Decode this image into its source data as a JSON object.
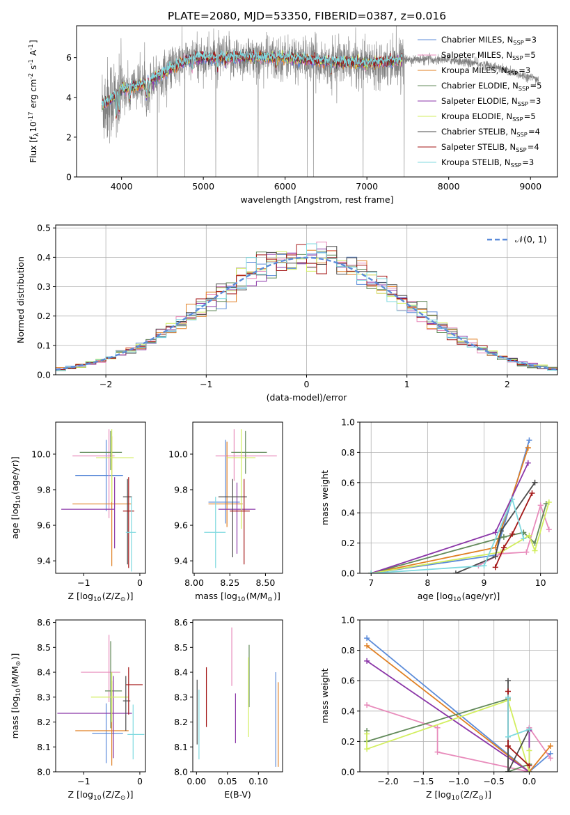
{
  "figure_title": "PLATE=2080, MJD=53350, FIBERID=0387, z=0.016",
  "series_names": [
    "Chabrier MILES, N$_{SSP}$=3",
    "Salpeter MILES, N$_{SSP}$=5",
    "Kroupa MILES, N$_{SSP}$=3",
    "Chabrier ELODIE, N$_{SSP}$=5",
    "Salpeter ELODIE, N$_{SSP}$=3",
    "Kroupa ELODIE, N$_{SSP}$=5",
    "Chabrier STELIB, N$_{SSP}$=4",
    "Salpeter STELIB, N$_{SSP}$=4",
    "Kroupa STELIB, N$_{SSP}$=3"
  ],
  "colors": {
    "series": [
      "#5b8bd9",
      "#e88bbb",
      "#e07f22",
      "#628a5a",
      "#8b36a8",
      "#d2ee5e",
      "#4a4a4a",
      "#a31616",
      "#7fd9df"
    ],
    "data": "#808080",
    "gaussian": "#5b8bd9",
    "grid": "#b0b0b0"
  },
  "chart_data": [
    {
      "id": "spectrum",
      "type": "line",
      "xlabel": "wavelength [Angstrom, rest frame]",
      "ylabel": "Flux [f$_\\lambda$10$^{-17}$ erg cm$^{-2}$ s$^{-1}$ A$^{-1}$]",
      "xlim": [
        3450,
        9330
      ],
      "ylim": [
        0,
        7.6
      ],
      "xticks": [
        4000,
        5000,
        6000,
        7000,
        8000,
        9000
      ],
      "yticks": [
        0,
        2,
        4,
        6
      ],
      "grid": false,
      "legend_position": "top-right",
      "data_range": [
        3760,
        9100
      ],
      "model_range": [
        3760,
        7430
      ],
      "continuum": [
        [
          3760,
          3.6
        ],
        [
          3900,
          4.0
        ],
        [
          4000,
          4.4
        ],
        [
          4300,
          4.7
        ],
        [
          4500,
          5.2
        ],
        [
          4800,
          5.9
        ],
        [
          5000,
          6.0
        ],
        [
          5500,
          6.0
        ],
        [
          6000,
          6.0
        ],
        [
          6500,
          5.8
        ],
        [
          7000,
          5.7
        ],
        [
          7500,
          5.9
        ],
        [
          8000,
          5.9
        ],
        [
          8500,
          5.6
        ],
        [
          9000,
          5.0
        ],
        [
          9100,
          4.9
        ]
      ]
    },
    {
      "id": "residuals",
      "type": "line",
      "xlabel": "(data-model)/error",
      "ylabel": "Normed distribution",
      "xlim": [
        -2.5,
        2.5
      ],
      "ylim": [
        0,
        0.51
      ],
      "xticks": [
        -2,
        -1,
        0,
        1,
        2
      ],
      "yticks": [
        0,
        0.1,
        0.2,
        0.3,
        0.4,
        0.5
      ],
      "grid": true,
      "legend_position": "top-right",
      "legend": "$\\mathcal{N}(0, 1)$",
      "bin_width": 0.1
    },
    {
      "id": "age_vs_Z",
      "type": "scatter",
      "xlabel": "Z [log$_{10}$(Z/Z$_\\odot$)]",
      "ylabel": "age  [log$_{10}$(age/yr)]",
      "xlim": [
        -1.5,
        0.1
      ],
      "ylim": [
        9.33,
        10.18
      ],
      "xticks": [
        -1,
        0
      ],
      "yticks": [
        9.4,
        9.6,
        9.8,
        10.0
      ],
      "grid": false,
      "points": [
        {
          "x": -0.6,
          "xerr": [
            0.55,
            0.3
          ],
          "y": 9.88,
          "yerr": [
            0.2,
            0.2
          ]
        },
        {
          "x": -0.55,
          "xerr": [
            0.65,
            0.1
          ],
          "y": 9.99,
          "yerr": [
            0.35,
            0.15
          ]
        },
        {
          "x": -0.5,
          "xerr": [
            0.7,
            0.35
          ],
          "y": 9.72,
          "yerr": [
            0.35,
            0.38
          ]
        },
        {
          "x": -0.52,
          "xerr": [
            0.55,
            0.2
          ],
          "y": 10.01,
          "yerr": [
            0.1,
            0.12
          ]
        },
        {
          "x": -0.45,
          "xerr": [
            0.95,
            0.0
          ],
          "y": 9.69,
          "yerr": [
            0.22,
            0.18
          ]
        },
        {
          "x": -0.5,
          "xerr": [
            0.28,
            0.39
          ],
          "y": 9.98,
          "yerr": [
            0.25,
            0.16
          ]
        },
        {
          "x": -0.22,
          "xerr": [
            0.08,
            0.08
          ],
          "y": 9.76,
          "yerr": [
            0.38,
            0.1
          ]
        },
        {
          "x": -0.2,
          "xerr": [
            0.1,
            0.1
          ],
          "y": 9.68,
          "yerr": [
            0.32,
            0.19
          ]
        },
        {
          "x": -0.15,
          "xerr": [
            0.1,
            0.08
          ],
          "y": 9.56,
          "yerr": [
            0.22,
            0.2
          ]
        }
      ]
    },
    {
      "id": "age_vs_mass",
      "type": "scatter",
      "xlabel": "mass [log$_{10}$(M/M$_\\odot$)]",
      "ylabel": "",
      "xlim": [
        7.99,
        8.62
      ],
      "ylim": [
        9.33,
        10.18
      ],
      "xticks": [
        8.0,
        8.25,
        8.5
      ],
      "yticks": [
        9.4,
        9.6,
        9.8,
        10.0
      ],
      "grid": false,
      "points": [
        {
          "x": 8.22,
          "xerr": [
            0.12,
            0.1
          ],
          "y": 9.73,
          "yerr": [
            0.12,
            0.35
          ]
        },
        {
          "x": 8.28,
          "xerr": [
            0.13,
            0.3
          ],
          "y": 9.99,
          "yerr": [
            0.14,
            0.15
          ]
        },
        {
          "x": 8.23,
          "xerr": [
            0.13,
            0.11
          ],
          "y": 9.72,
          "yerr": [
            0.13,
            0.35
          ]
        },
        {
          "x": 8.36,
          "xerr": [
            0.1,
            0.15
          ],
          "y": 10.01,
          "yerr": [
            0.12,
            0.12
          ]
        },
        {
          "x": 8.3,
          "xerr": [
            0.13,
            0.13
          ],
          "y": 9.69,
          "yerr": [
            0.25,
            0.15
          ]
        },
        {
          "x": 8.33,
          "xerr": [
            0.1,
            0.1
          ],
          "y": 9.98,
          "yerr": [
            0.4,
            0.16
          ]
        },
        {
          "x": 8.27,
          "xerr": [
            0.1,
            0.1
          ],
          "y": 9.76,
          "yerr": [
            0.34,
            0.1
          ]
        },
        {
          "x": 8.35,
          "xerr": [
            0.1,
            0.04
          ],
          "y": 9.68,
          "yerr": [
            0.3,
            0.18
          ]
        },
        {
          "x": 8.15,
          "xerr": [
            0.08,
            0.07
          ],
          "y": 9.56,
          "yerr": [
            0.2,
            0.2
          ]
        }
      ]
    },
    {
      "id": "weight_vs_age",
      "type": "line",
      "xlabel": "age  [log$_{10}$(age/yr)]",
      "ylabel": "mass weight",
      "xlim": [
        6.8,
        10.3
      ],
      "ylim": [
        0,
        1.0
      ],
      "xticks": [
        7,
        8,
        9,
        10
      ],
      "yticks": [
        0.0,
        0.2,
        0.4,
        0.6,
        0.8,
        1.0
      ],
      "grid": true,
      "series": [
        {
          "points": [
            [
              7.0,
              0.0
            ],
            [
              9.2,
              0.12
            ],
            [
              9.8,
              0.88
            ]
          ]
        },
        {
          "points": [
            [
              8.9,
              0.05
            ],
            [
              9.3,
              0.13
            ],
            [
              9.75,
              0.14
            ],
            [
              10.0,
              0.45
            ],
            [
              10.15,
              0.29
            ]
          ]
        },
        {
          "points": [
            [
              7.0,
              0.0
            ],
            [
              9.2,
              0.17
            ],
            [
              9.78,
              0.83
            ]
          ]
        },
        {
          "points": [
            [
              7.0,
              0.0
            ],
            [
              9.35,
              0.24
            ],
            [
              9.7,
              0.27
            ],
            [
              9.9,
              0.2
            ],
            [
              10.1,
              0.46
            ]
          ]
        },
        {
          "points": [
            [
              7.0,
              0.0
            ],
            [
              9.2,
              0.27
            ],
            [
              9.78,
              0.73
            ]
          ]
        },
        {
          "points": [
            [
              7.0,
              0.0
            ],
            [
              9.3,
              0.14
            ],
            [
              9.8,
              0.25
            ],
            [
              9.9,
              0.15
            ],
            [
              10.15,
              0.47
            ]
          ]
        },
        {
          "points": [
            [
              8.5,
              0.0
            ],
            [
              9.2,
              0.11
            ],
            [
              9.3,
              0.28
            ],
            [
              9.9,
              0.6
            ]
          ]
        },
        {
          "points": [
            [
              9.2,
              0.04
            ],
            [
              9.35,
              0.17
            ],
            [
              9.5,
              0.26
            ],
            [
              9.85,
              0.53
            ]
          ]
        },
        {
          "points": [
            [
              7.0,
              0.0
            ],
            [
              9.0,
              0.05
            ],
            [
              9.5,
              0.49
            ],
            [
              9.7,
              0.23
            ]
          ]
        }
      ]
    },
    {
      "id": "mass_vs_Z",
      "type": "scatter",
      "xlabel": "Z [log$_{10}$(Z/Z$_\\odot$)]",
      "ylabel": "mass [log$_{10}$(M/M$_\\odot$)]",
      "xlim": [
        -1.5,
        0.1
      ],
      "ylim": [
        8.0,
        8.61
      ],
      "xticks": [
        -1,
        0
      ],
      "yticks": [
        8.0,
        8.1,
        8.2,
        8.3,
        8.4,
        8.5,
        8.6
      ],
      "grid": false,
      "points": [
        {
          "x": -0.6,
          "xerr": [
            0.25,
            0.3
          ],
          "y": 8.155,
          "yerr": [
            0.12,
            0.12
          ]
        },
        {
          "x": -0.55,
          "xerr": [
            0.5,
            0.2
          ],
          "y": 8.4,
          "yerr": [
            0.12,
            0.15
          ]
        },
        {
          "x": -0.5,
          "xerr": [
            0.65,
            0.3
          ],
          "y": 8.165,
          "yerr": [
            0.14,
            0.2
          ]
        },
        {
          "x": -0.52,
          "xerr": [
            0.1,
            0.2
          ],
          "y": 8.325,
          "yerr": [
            0.15,
            0.2
          ]
        },
        {
          "x": -0.47,
          "xerr": [
            1.0,
            0.33
          ],
          "y": 8.235,
          "yerr": [
            0.18,
            0.15
          ]
        },
        {
          "x": -0.5,
          "xerr": [
            0.37,
            0.3
          ],
          "y": 8.3,
          "yerr": [
            0.1,
            0.1
          ]
        },
        {
          "x": -0.25,
          "xerr": [
            0.05,
            0.08
          ],
          "y": 8.285,
          "yerr": [
            0.12,
            0.1
          ]
        },
        {
          "x": -0.2,
          "xerr": [
            0.05,
            0.25
          ],
          "y": 8.35,
          "yerr": [
            0.12,
            0.07
          ]
        },
        {
          "x": -0.12,
          "xerr": [
            0.1,
            0.2
          ],
          "y": 8.15,
          "yerr": [
            0.1,
            0.12
          ]
        }
      ]
    },
    {
      "id": "mass_vs_EBV",
      "type": "scatter",
      "xlabel": "E(B-V)",
      "ylabel": "",
      "xlim": [
        -0.006,
        0.139
      ],
      "ylim": [
        8.0,
        8.61
      ],
      "xticks": [
        0.0,
        0.05,
        0.1
      ],
      "yticks": [
        8.0,
        8.1,
        8.2,
        8.3,
        8.4,
        8.5,
        8.6
      ],
      "grid": false,
      "points": [
        {
          "x": 0.128,
          "y": 8.21,
          "yerr": [
            0.19,
            0.19
          ]
        },
        {
          "x": 0.057,
          "y": 8.465,
          "yerr": [
            0.12,
            0.115
          ]
        },
        {
          "x": 0.132,
          "y": 8.19,
          "yerr": [
            0.17,
            0.17
          ]
        },
        {
          "x": 0.085,
          "y": 8.38,
          "yerr": [
            0.12,
            0.13
          ]
        },
        {
          "x": 0.063,
          "y": 8.215,
          "yerr": [
            0.1,
            0.1
          ]
        },
        {
          "x": 0.084,
          "y": 8.3,
          "yerr": [
            0.16,
            0.16
          ]
        },
        {
          "x": 0.001,
          "y": 8.24,
          "yerr": [
            0.13,
            0.13
          ]
        },
        {
          "x": 0.016,
          "y": 8.3,
          "yerr": [
            0.12,
            0.12
          ]
        },
        {
          "x": 0.004,
          "y": 8.19,
          "yerr": [
            0.14,
            0.14
          ]
        }
      ]
    },
    {
      "id": "weight_vs_Z",
      "type": "line",
      "xlabel": "Z [log$_{10}$(Z/Z$_\\odot$)]",
      "ylabel": "mass weight",
      "xlim": [
        -2.4,
        0.4
      ],
      "ylim": [
        0,
        1.0
      ],
      "xticks": [
        -2.0,
        -1.5,
        -1.0,
        -0.5,
        0.0
      ],
      "yticks": [
        0.0,
        0.2,
        0.4,
        0.6,
        0.8,
        1.0
      ],
      "grid": true,
      "series": [
        {
          "points": [
            [
              -2.3,
              0.88
            ],
            [
              0.0,
              0.0
            ],
            [
              0.3,
              0.12
            ]
          ]
        },
        {
          "points": [
            [
              -2.3,
              0.44
            ],
            [
              -1.3,
              0.29
            ],
            [
              -1.3,
              0.13
            ],
            [
              0.0,
              0.0
            ],
            [
              0.0,
              0.29
            ],
            [
              0.3,
              0.09
            ]
          ]
        },
        {
          "points": [
            [
              -2.3,
              0.83
            ],
            [
              0.0,
              0.0
            ],
            [
              0.3,
              0.17
            ]
          ]
        },
        {
          "points": [
            [
              -2.3,
              0.27
            ],
            [
              -2.3,
              0.2
            ],
            [
              -0.3,
              0.48
            ],
            [
              -0.3,
              0.0
            ],
            [
              0.0,
              0.05
            ]
          ]
        },
        {
          "points": [
            [
              -2.3,
              0.73
            ],
            [
              0.0,
              0.0
            ],
            [
              0.0,
              0.27
            ]
          ]
        },
        {
          "points": [
            [
              -2.3,
              0.25
            ],
            [
              -2.3,
              0.15
            ],
            [
              -0.3,
              0.47
            ],
            [
              0.0,
              0.0
            ],
            [
              0.0,
              0.14
            ]
          ]
        },
        {
          "points": [
            [
              -0.3,
              0.6
            ],
            [
              -0.3,
              0.0
            ],
            [
              0.0,
              0.28
            ]
          ]
        },
        {
          "points": [
            [
              -0.3,
              0.53
            ],
            [
              -0.3,
              0.17
            ],
            [
              0.0,
              0.04
            ]
          ]
        },
        {
          "points": [
            [
              -0.3,
              0.49
            ],
            [
              -0.3,
              0.23
            ],
            [
              0.0,
              0.28
            ]
          ]
        }
      ]
    }
  ]
}
